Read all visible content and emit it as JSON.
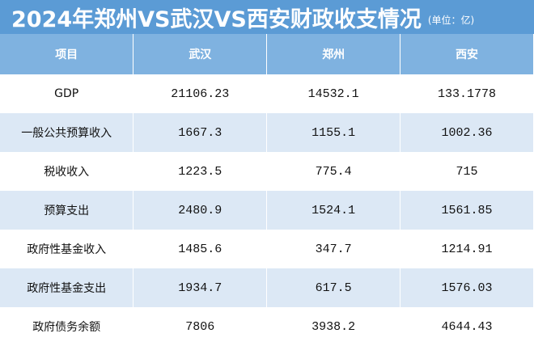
{
  "header": {
    "title": "2024年郑州VS武汉VS西安财政收支情况",
    "unit": "(单位：亿)"
  },
  "table": {
    "columns": [
      "项目",
      "武汉",
      "郑州",
      "西安"
    ],
    "rows": [
      [
        "GDP",
        "21106.23",
        "14532.1",
        "133.1778"
      ],
      [
        "一般公共预算收入",
        "1667.3",
        "1155.1",
        "1002.36"
      ],
      [
        "税收收入",
        "1223.5",
        "775.4",
        "715"
      ],
      [
        "预算支出",
        "2480.9",
        "1524.1",
        "1561.85"
      ],
      [
        "政府性基金收入",
        "1485.6",
        "347.7",
        "1214.91"
      ],
      [
        "政府性基金支出",
        "1934.7",
        "617.5",
        "1576.03"
      ],
      [
        "政府债务余额",
        "7806",
        "3938.2",
        "4644.43"
      ]
    ]
  }
}
